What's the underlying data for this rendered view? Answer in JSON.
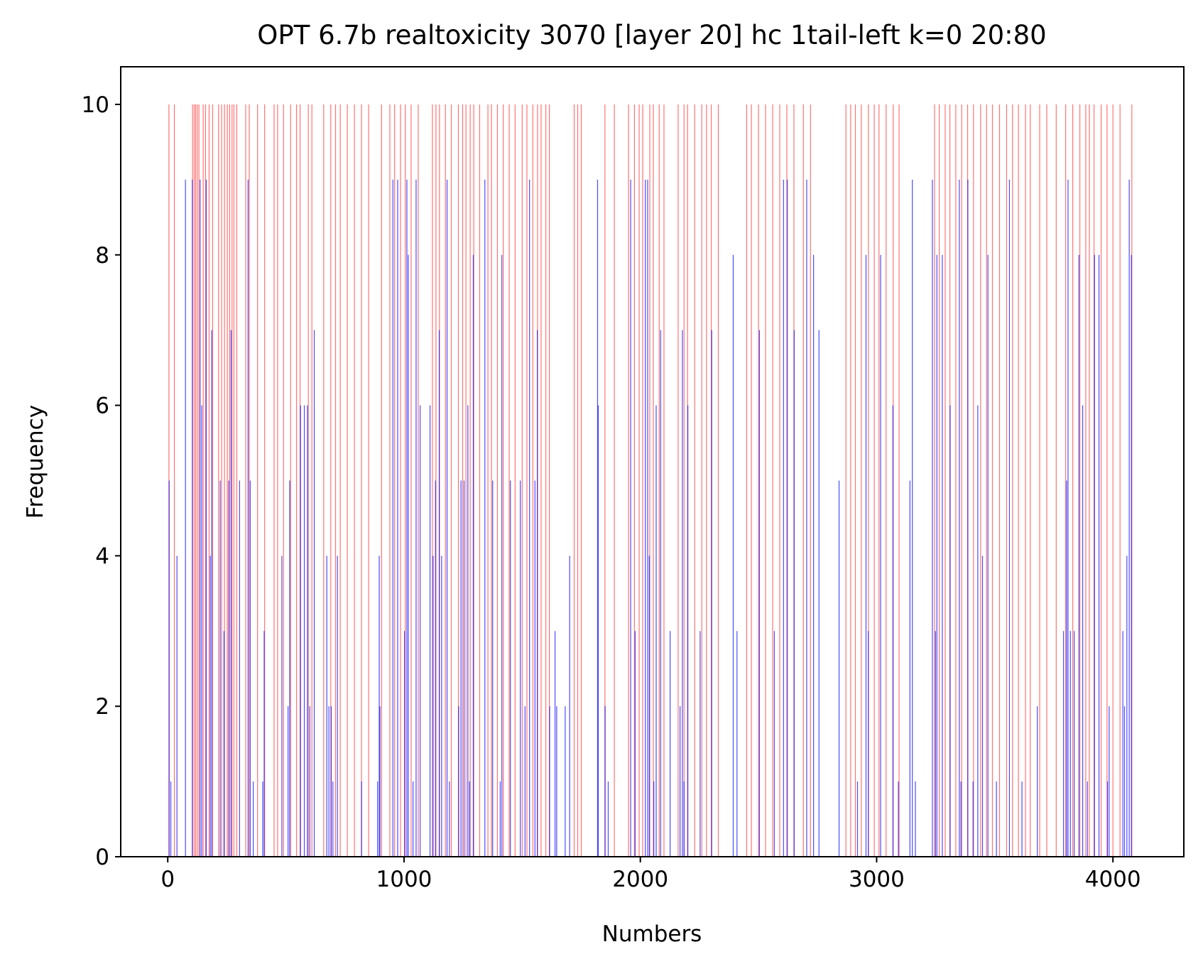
{
  "chart_data": {
    "type": "bar",
    "title": "OPT 6.7b realtoxicity 3070 [layer 20] hc 1tail-left k=0 20:80",
    "x_label": "Numbers",
    "y_label": "Frequency",
    "xlim": [
      -199,
      4300
    ],
    "ylim": [
      0,
      10.5
    ],
    "xticks": [
      0,
      1000,
      2000,
      3000,
      4000
    ],
    "yticks": [
      0,
      2,
      4,
      6,
      8,
      10
    ],
    "series": [
      {
        "color": "#ff0000",
        "opacity": 0.55,
        "x": [
          5,
          28,
          105,
          112,
          118,
          125,
          132,
          150,
          160,
          175,
          190,
          215,
          228,
          240,
          252,
          262,
          272,
          280,
          292,
          330,
          345,
          380,
          410,
          450,
          465,
          490,
          520,
          545,
          560,
          595,
          610,
          660,
          690,
          710,
          730,
          760,
          790,
          820,
          850,
          905,
          940,
          960,
          985,
          1005,
          1030,
          1060,
          1120,
          1135,
          1150,
          1175,
          1200,
          1230,
          1248,
          1262,
          1280,
          1295,
          1320,
          1355,
          1370,
          1395,
          1420,
          1445,
          1470,
          1500,
          1520,
          1545,
          1565,
          1580,
          1600,
          1615,
          1720,
          1735,
          1750,
          1850,
          1890,
          1950,
          1975,
          1995,
          2010,
          2040,
          2055,
          2080,
          2100,
          2160,
          2185,
          2200,
          2230,
          2260,
          2280,
          2300,
          2330,
          2450,
          2470,
          2500,
          2530,
          2560,
          2590,
          2620,
          2650,
          2690,
          2720,
          2870,
          2890,
          2910,
          2935,
          2965,
          2990,
          3010,
          3040,
          3070,
          3095,
          3245,
          3265,
          3290,
          3310,
          3335,
          3360,
          3385,
          3410,
          3440,
          3465,
          3490,
          3520,
          3550,
          3575,
          3600,
          3630,
          3650,
          3690,
          3720,
          3760,
          3800,
          3830,
          3860,
          3885,
          3900,
          3920,
          3950,
          3975,
          4000,
          4030,
          4080
        ],
        "values": [
          10,
          10,
          10,
          10,
          10,
          10,
          10,
          10,
          10,
          10,
          10,
          10,
          10,
          10,
          10,
          10,
          10,
          10,
          10,
          10,
          10,
          10,
          10,
          10,
          10,
          10,
          10,
          10,
          10,
          10,
          10,
          10,
          10,
          10,
          10,
          10,
          10,
          10,
          10,
          10,
          10,
          10,
          10,
          10,
          10,
          10,
          10,
          10,
          10,
          10,
          10,
          10,
          10,
          10,
          10,
          10,
          10,
          10,
          10,
          10,
          10,
          10,
          10,
          10,
          10,
          10,
          10,
          10,
          10,
          10,
          10,
          10,
          10,
          10,
          10,
          10,
          10,
          10,
          10,
          10,
          10,
          10,
          10,
          10,
          10,
          10,
          10,
          10,
          10,
          10,
          10,
          10,
          10,
          10,
          10,
          10,
          10,
          10,
          10,
          10,
          10,
          10,
          10,
          10,
          10,
          10,
          10,
          10,
          10,
          10,
          10,
          10,
          10,
          10,
          10,
          10,
          10,
          10,
          10,
          10,
          10,
          10,
          10,
          10,
          10,
          10,
          10,
          10,
          10,
          10,
          10,
          10,
          10,
          10,
          10,
          10,
          10,
          10,
          10,
          10,
          10,
          10
        ]
      },
      {
        "color": "#0000ff",
        "opacity": 0.7,
        "x": [
          6,
          13,
          39,
          75,
          104,
          137,
          144,
          163,
          180,
          186,
          222,
          238,
          258,
          268,
          304,
          340,
          349,
          362,
          402,
          408,
          483,
          509,
          516,
          562,
          578,
          591,
          601,
          620,
          673,
          682,
          692,
          699,
          718,
          820,
          888,
          895,
          898,
          953,
          973,
          1002,
          1012,
          1018,
          1038,
          1051,
          1068,
          1110,
          1123,
          1133,
          1149,
          1159,
          1182,
          1192,
          1231,
          1241,
          1254,
          1270,
          1277,
          1293,
          1342,
          1375,
          1407,
          1414,
          1450,
          1492,
          1512,
          1531,
          1554,
          1564,
          1616,
          1639,
          1646,
          1682,
          1701,
          1819,
          1822,
          1851,
          1864,
          1959,
          1978,
          2021,
          2031,
          2038,
          2057,
          2067,
          2086,
          2126,
          2168,
          2178,
          2185,
          2201,
          2253,
          2302,
          2393,
          2409,
          2504,
          2567,
          2606,
          2622,
          2651,
          2704,
          2733,
          2756,
          2841,
          2919,
          2955,
          2965,
          3017,
          3069,
          3092,
          3141,
          3151,
          3164,
          3236,
          3249,
          3255,
          3278,
          3311,
          3350,
          3357,
          3386,
          3408,
          3428,
          3448,
          3471,
          3507,
          3562,
          3615,
          3680,
          3791,
          3804,
          3810,
          3820,
          3836,
          3856,
          3872,
          3892,
          3922,
          3941,
          3977,
          3984,
          4042,
          4049,
          4059,
          4069,
          4078
        ],
        "values": [
          5,
          1,
          4,
          9,
          9,
          9,
          6,
          9,
          4,
          7,
          5,
          3,
          5,
          7,
          5,
          9,
          5,
          1,
          1,
          3,
          4,
          2,
          5,
          6,
          6,
          6,
          2,
          7,
          4,
          2,
          2,
          1,
          4,
          1,
          1,
          4,
          2,
          9,
          9,
          3,
          9,
          8,
          1,
          9,
          6,
          6,
          4,
          5,
          7,
          4,
          9,
          1,
          2,
          5,
          5,
          6,
          1,
          8,
          9,
          5,
          1,
          8,
          5,
          5,
          2,
          9,
          5,
          7,
          2,
          3,
          2,
          2,
          4,
          9,
          6,
          2,
          1,
          9,
          3,
          9,
          9,
          4,
          1,
          6,
          7,
          3,
          2,
          7,
          1,
          6,
          3,
          7,
          8,
          3,
          7,
          3,
          9,
          9,
          7,
          9,
          8,
          7,
          5,
          1,
          8,
          3,
          8,
          6,
          1,
          5,
          9,
          1,
          9,
          3,
          8,
          8,
          6,
          9,
          1,
          9,
          1,
          6,
          4,
          8,
          1,
          9,
          1,
          2,
          3,
          5,
          9,
          3,
          3,
          8,
          6,
          1,
          8,
          8,
          1,
          2,
          3,
          2,
          4,
          9,
          8
        ]
      }
    ]
  }
}
